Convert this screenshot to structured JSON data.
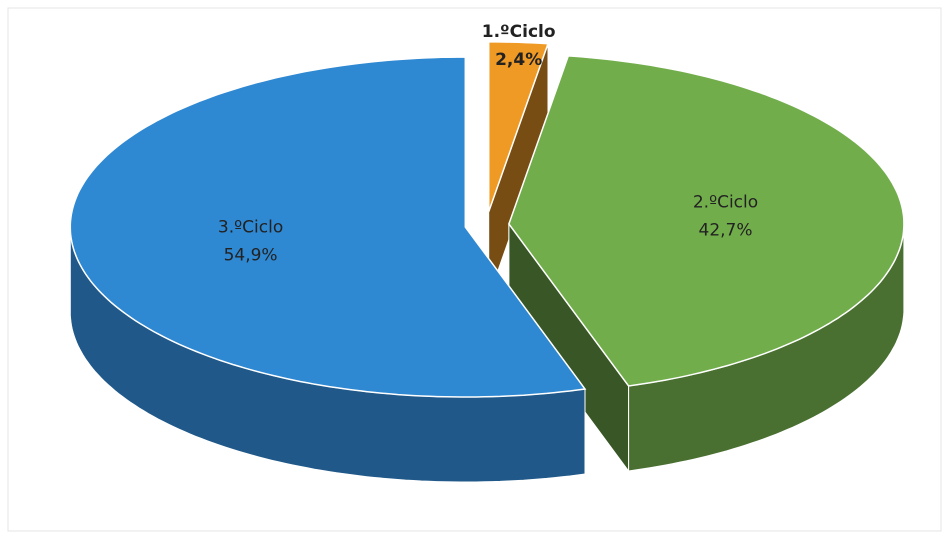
{
  "chart_data": {
    "type": "pie",
    "categories": [
      "1.ºCiclo",
      "2.ºCiclo",
      "3.ºCiclo"
    ],
    "values": [
      2.4,
      42.7,
      54.9
    ],
    "value_labels": [
      "2,4%",
      "42,7%",
      "54,9%"
    ],
    "colors": [
      "#f09a26",
      "#72ad4c",
      "#2f88d2"
    ]
  }
}
